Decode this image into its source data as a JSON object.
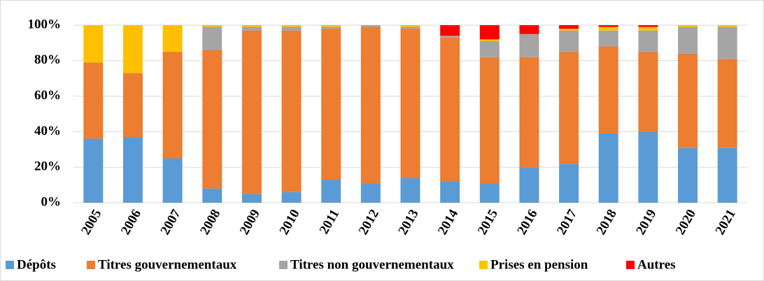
{
  "chart_data": {
    "type": "stacked_bar",
    "categories": [
      "2005",
      "2006",
      "2007",
      "2008",
      "2009",
      "2010",
      "2011",
      "2012",
      "2013",
      "2014",
      "2015",
      "2016",
      "2017",
      "2018",
      "2019",
      "2020",
      "2021"
    ],
    "series": [
      {
        "name": "Dépôts",
        "color": "#5b9bd5",
        "values": [
          36,
          37,
          25,
          8,
          5,
          6,
          13,
          11,
          14,
          12,
          11,
          20,
          22,
          39,
          40,
          31,
          31
        ]
      },
      {
        "name": "Titres gouvernementaux",
        "color": "#ed7d31",
        "values": [
          43,
          36,
          60,
          78,
          92,
          91,
          85,
          88,
          84,
          81,
          71,
          62,
          63,
          49,
          45,
          53,
          50
        ]
      },
      {
        "name": "Titres non gouvernementaux",
        "color": "#a5a5a5",
        "values": [
          0,
          0,
          0,
          13,
          2,
          2,
          1,
          1,
          1,
          1,
          9,
          13,
          12,
          9,
          12,
          15,
          18
        ]
      },
      {
        "name": "Prises en pension",
        "color": "#ffc000",
        "values": [
          21,
          27,
          15,
          1,
          1,
          1,
          1,
          0,
          1,
          0,
          1,
          0,
          1,
          2,
          2,
          1,
          1
        ]
      },
      {
        "name": "Autres",
        "color": "#ff0000",
        "values": [
          0,
          0,
          0,
          0,
          0,
          0,
          0,
          0,
          0,
          6,
          8,
          5,
          2,
          1,
          1,
          0,
          0
        ]
      }
    ],
    "ylim": [
      0,
      100
    ],
    "yticks": [
      {
        "value": 0,
        "label": "0%"
      },
      {
        "value": 20,
        "label": "20%"
      },
      {
        "value": 40,
        "label": "40%"
      },
      {
        "value": 60,
        "label": "60%"
      },
      {
        "value": 80,
        "label": "80%"
      },
      {
        "value": 100,
        "label": "100%"
      }
    ],
    "grid": true
  }
}
